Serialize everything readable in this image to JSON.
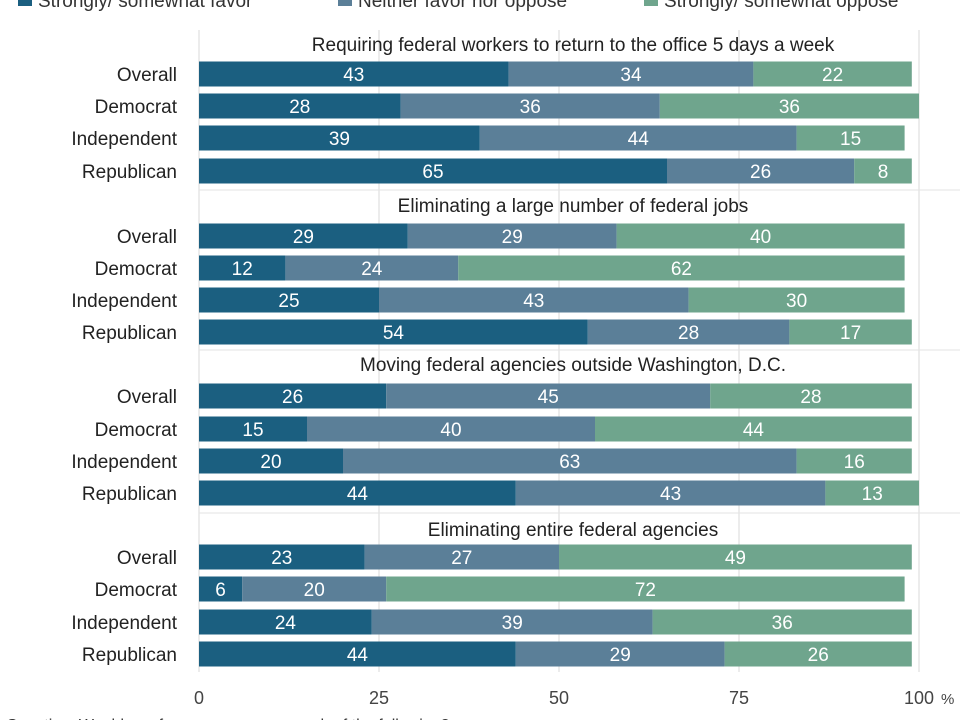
{
  "chart_data": {
    "type": "bar",
    "orientation": "horizontal",
    "stacked": true,
    "xlim": [
      0,
      100
    ],
    "x_ticks": [
      "0",
      "25",
      "50",
      "75",
      "100"
    ],
    "x_unit": "%",
    "grid": true,
    "legend": {
      "position": "top",
      "entries": [
        "Strongly/ somewhat favor",
        "Neither favor nor oppose",
        "Strongly/ somewhat oppose"
      ]
    },
    "colors": [
      "#1b5f80",
      "#5b7f98",
      "#6fa58d"
    ],
    "footnote": "Question: Would you favor or oppose … each of the following?",
    "panels": [
      {
        "title": "Requiring federal workers to return to the office 5 days a week",
        "categories": [
          "Overall",
          "Democrat",
          "Independent",
          "Republican"
        ],
        "series": [
          {
            "name": "Strongly/ somewhat favor",
            "values": [
              43,
              28,
              39,
              65
            ]
          },
          {
            "name": "Neither favor nor oppose",
            "values": [
              34,
              36,
              44,
              26
            ]
          },
          {
            "name": "Strongly/ somewhat oppose",
            "values": [
              22,
              36,
              15,
              8
            ]
          }
        ]
      },
      {
        "title": "Eliminating a large number of federal jobs",
        "categories": [
          "Overall",
          "Democrat",
          "Independent",
          "Republican"
        ],
        "series": [
          {
            "name": "Strongly/ somewhat favor",
            "values": [
              29,
              12,
              25,
              54
            ]
          },
          {
            "name": "Neither favor nor oppose",
            "values": [
              29,
              24,
              43,
              28
            ]
          },
          {
            "name": "Strongly/ somewhat oppose",
            "values": [
              40,
              62,
              30,
              17
            ]
          }
        ]
      },
      {
        "title": "Moving federal agencies outside Washington, D.C.",
        "categories": [
          "Overall",
          "Democrat",
          "Independent",
          "Republican"
        ],
        "series": [
          {
            "name": "Strongly/ somewhat favor",
            "values": [
              26,
              15,
              20,
              44
            ]
          },
          {
            "name": "Neither favor nor oppose",
            "values": [
              45,
              40,
              63,
              43
            ]
          },
          {
            "name": "Strongly/ somewhat oppose",
            "values": [
              28,
              44,
              16,
              13
            ]
          }
        ]
      },
      {
        "title": "Eliminating entire federal agencies",
        "categories": [
          "Overall",
          "Democrat",
          "Independent",
          "Republican"
        ],
        "series": [
          {
            "name": "Strongly/ somewhat favor",
            "values": [
              23,
              6,
              24,
              44
            ]
          },
          {
            "name": "Neither favor nor oppose",
            "values": [
              27,
              20,
              39,
              29
            ]
          },
          {
            "name": "Strongly/ somewhat oppose",
            "values": [
              49,
              72,
              36,
              26
            ]
          }
        ]
      }
    ]
  }
}
